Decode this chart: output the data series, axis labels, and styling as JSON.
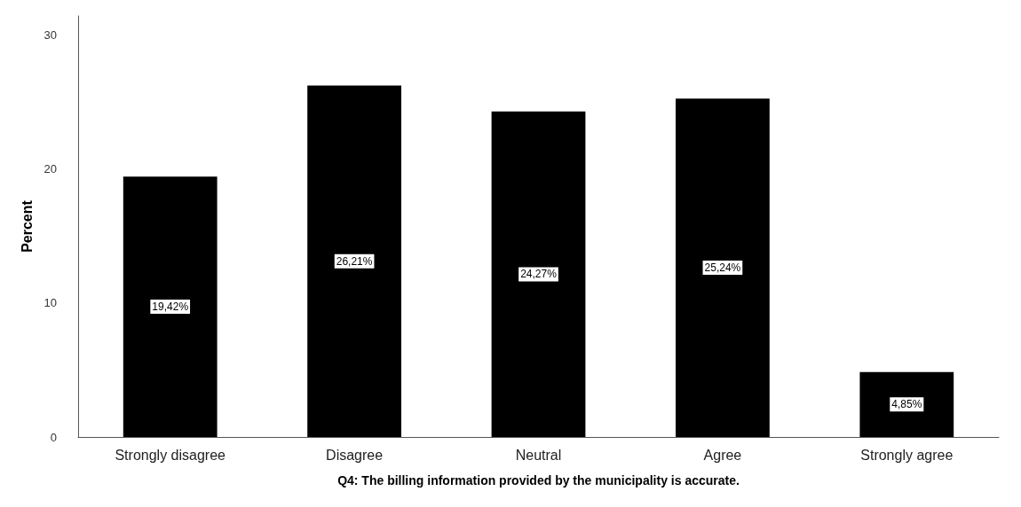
{
  "chart_data": {
    "type": "bar",
    "xlabel": "Q4: The billing information provided by the municipality is accurate.",
    "ylabel": "Percent",
    "categories": [
      "Strongly disagree",
      "Disagree",
      "Neutral",
      "Agree",
      "Strongly agree"
    ],
    "values": [
      19.42,
      26.21,
      24.27,
      25.24,
      4.85
    ],
    "value_labels": [
      "19,42%",
      "26,21%",
      "24,27%",
      "25,24%",
      "4,85%"
    ],
    "color": "#000000",
    "ylim": [
      0,
      31.4
    ],
    "yticks": [
      0,
      10,
      20,
      30
    ],
    "grid": false
  }
}
